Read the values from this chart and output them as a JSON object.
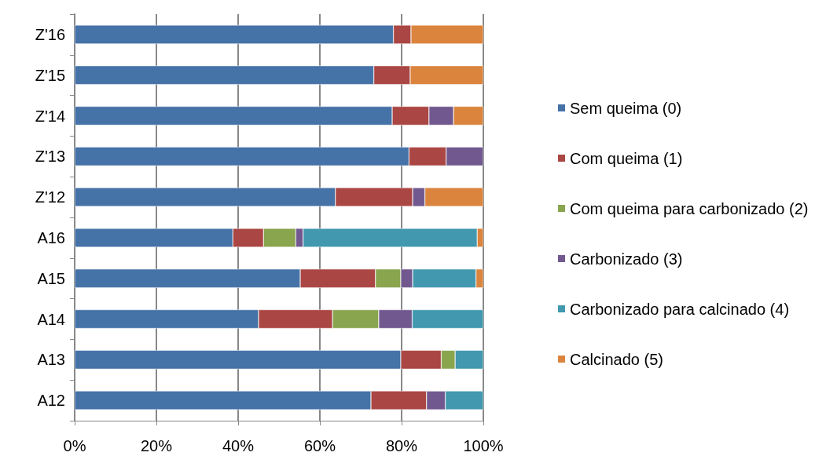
{
  "chart_data": {
    "type": "bar",
    "orientation": "horizontal",
    "stacked": true,
    "categories": [
      "Z'16",
      "Z'15",
      "Z'14",
      "Z'13",
      "Z'12",
      "A16",
      "A15",
      "A14",
      "A13",
      "A12"
    ],
    "series": [
      {
        "name": "Sem queima (0)",
        "color": "#4572a7",
        "values": [
          78,
          73.2,
          77.7,
          81.8,
          63.8,
          38.7,
          55.2,
          45,
          79.8,
          72.5
        ]
      },
      {
        "name": "Com queima (1)",
        "color": "#aa4643",
        "values": [
          4.3,
          8.9,
          9,
          9.1,
          18.9,
          7.5,
          18.4,
          18.1,
          9.9,
          13.6
        ]
      },
      {
        "name": "Com queima para carbonizado (2)",
        "color": "#89a54e",
        "values": [
          null,
          null,
          null,
          null,
          null,
          7.9,
          6.2,
          11.3,
          3.4,
          null
        ]
      },
      {
        "name": "Carbonizado (3)",
        "color": "#71588f",
        "values": [
          null,
          null,
          6,
          9.1,
          3,
          1.8,
          2.9,
          8.2,
          null,
          4.6
        ]
      },
      {
        "name": "Carbonizado para calcinado (4)",
        "color": "#4198af",
        "values": [
          null,
          null,
          null,
          null,
          null,
          42.6,
          15.5,
          17.4,
          6.9,
          9.3
        ]
      },
      {
        "name": "Calcinado (5)",
        "color": "#db843d",
        "values": [
          17.7,
          17.9,
          7.3,
          null,
          14.3,
          1.5,
          1.8,
          null,
          null,
          null
        ]
      }
    ],
    "xlim": [
      0,
      100
    ],
    "xticks": [
      {
        "value": 0,
        "label": "0%"
      },
      {
        "value": 20,
        "label": "20%"
      },
      {
        "value": 40,
        "label": "40%"
      },
      {
        "value": 60,
        "label": "60%"
      },
      {
        "value": 80,
        "label": "80%"
      },
      {
        "value": 100,
        "label": "100%"
      }
    ],
    "grid": "x",
    "legend": "right"
  }
}
